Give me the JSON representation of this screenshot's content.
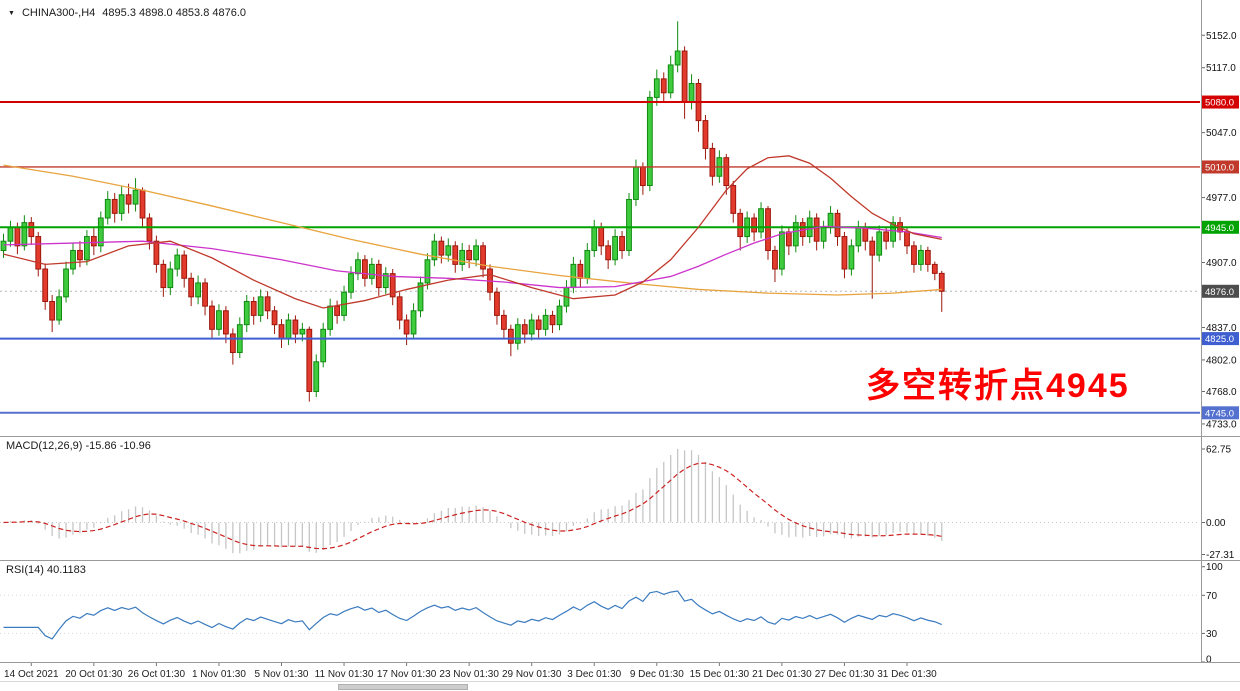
{
  "window": {
    "title": "CHINA300-,H4",
    "ohlc": "4895.3 4898.0 4853.8 4876.0"
  },
  "annotation": {
    "text": "多空转折点4945",
    "color": "#FF0000"
  },
  "chart_data": {
    "type": "candlestick",
    "symbol": "CHINA300-",
    "timeframe": "H4",
    "last_bar": {
      "open": 4895.3,
      "high": 4898.0,
      "low": 4853.8,
      "close": 4876.0
    },
    "price_range": {
      "min": 4720,
      "max": 5190
    },
    "price_axis_labels": [
      5152.0,
      5117.0,
      5047.0,
      4977.0,
      4907.0,
      4837.0,
      4802.0,
      4768.0,
      4733.0
    ],
    "hlines": [
      {
        "price": 5080.0,
        "color": "#d40000",
        "width": 2
      },
      {
        "price": 5010.0,
        "color": "#c0392b",
        "width": 1.4
      },
      {
        "price": 4945.0,
        "color": "#00a300",
        "width": 2
      },
      {
        "price": 4825.0,
        "color": "#3f5fd0",
        "width": 2
      },
      {
        "price": 4745.0,
        "color": "#5571cf",
        "width": 2
      }
    ],
    "current_price": {
      "value": 4876.0,
      "badge_color": "#4d4d4d",
      "line_color": "#b5b5b5"
    },
    "colors": {
      "up_fill": "#3ecb3e",
      "up_stroke": "#118a11",
      "down_fill": "#e23a2c",
      "down_stroke": "#9c170c"
    },
    "candles": [
      [
        4920,
        4938,
        4912,
        4930
      ],
      [
        4930,
        4952,
        4924,
        4945
      ],
      [
        4945,
        4950,
        4916,
        4925
      ],
      [
        4925,
        4958,
        4920,
        4950
      ],
      [
        4950,
        4956,
        4926,
        4935
      ],
      [
        4935,
        4940,
        4892,
        4900
      ],
      [
        4900,
        4906,
        4856,
        4865
      ],
      [
        4865,
        4872,
        4832,
        4845
      ],
      [
        4845,
        4878,
        4840,
        4870
      ],
      [
        4870,
        4908,
        4864,
        4900
      ],
      [
        4900,
        4928,
        4894,
        4920
      ],
      [
        4920,
        4930,
        4902,
        4910
      ],
      [
        4910,
        4942,
        4904,
        4935
      ],
      [
        4935,
        4944,
        4915,
        4925
      ],
      [
        4925,
        4962,
        4918,
        4955
      ],
      [
        4955,
        4984,
        4948,
        4975
      ],
      [
        4975,
        4982,
        4950,
        4960
      ],
      [
        4960,
        4990,
        4952,
        4980
      ],
      [
        4980,
        4992,
        4960,
        4970
      ],
      [
        4970,
        4998,
        4962,
        4985
      ],
      [
        4985,
        4988,
        4946,
        4955
      ],
      [
        4955,
        4960,
        4921,
        4930
      ],
      [
        4930,
        4936,
        4896,
        4905
      ],
      [
        4905,
        4910,
        4870,
        4880
      ],
      [
        4880,
        4908,
        4872,
        4900
      ],
      [
        4900,
        4922,
        4892,
        4915
      ],
      [
        4915,
        4920,
        4880,
        4890
      ],
      [
        4890,
        4896,
        4860,
        4870
      ],
      [
        4870,
        4893,
        4862,
        4885
      ],
      [
        4885,
        4890,
        4850,
        4860
      ],
      [
        4860,
        4866,
        4824,
        4835
      ],
      [
        4835,
        4862,
        4828,
        4855
      ],
      [
        4855,
        4860,
        4820,
        4830
      ],
      [
        4830,
        4836,
        4797,
        4810
      ],
      [
        4810,
        4848,
        4804,
        4840
      ],
      [
        4840,
        4872,
        4832,
        4865
      ],
      [
        4865,
        4870,
        4840,
        4850
      ],
      [
        4850,
        4878,
        4843,
        4870
      ],
      [
        4870,
        4876,
        4846,
        4855
      ],
      [
        4855,
        4860,
        4830,
        4840
      ],
      [
        4840,
        4846,
        4815,
        4825
      ],
      [
        4825,
        4852,
        4818,
        4845
      ],
      [
        4845,
        4850,
        4820,
        4830
      ],
      [
        4830,
        4842,
        4822,
        4835
      ],
      [
        4835,
        4838,
        4757,
        4768
      ],
      [
        4768,
        4808,
        4762,
        4800
      ],
      [
        4800,
        4842,
        4794,
        4835
      ],
      [
        4835,
        4868,
        4828,
        4860
      ],
      [
        4860,
        4866,
        4841,
        4850
      ],
      [
        4850,
        4882,
        4844,
        4875
      ],
      [
        4875,
        4903,
        4868,
        4895
      ],
      [
        4895,
        4918,
        4888,
        4910
      ],
      [
        4910,
        4915,
        4881,
        4890
      ],
      [
        4890,
        4912,
        4883,
        4905
      ],
      [
        4905,
        4910,
        4871,
        4880
      ],
      [
        4880,
        4902,
        4873,
        4895
      ],
      [
        4895,
        4900,
        4861,
        4870
      ],
      [
        4870,
        4875,
        4835,
        4845
      ],
      [
        4845,
        4851,
        4818,
        4830
      ],
      [
        4830,
        4863,
        4824,
        4855
      ],
      [
        4855,
        4892,
        4848,
        4885
      ],
      [
        4885,
        4917,
        4878,
        4910
      ],
      [
        4910,
        4938,
        4903,
        4930
      ],
      [
        4930,
        4935,
        4906,
        4915
      ],
      [
        4915,
        4933,
        4908,
        4925
      ],
      [
        4925,
        4930,
        4896,
        4905
      ],
      [
        4905,
        4928,
        4898,
        4920
      ],
      [
        4920,
        4926,
        4901,
        4910
      ],
      [
        4910,
        4932,
        4903,
        4925
      ],
      [
        4925,
        4929,
        4891,
        4900
      ],
      [
        4900,
        4905,
        4866,
        4875
      ],
      [
        4875,
        4880,
        4840,
        4850
      ],
      [
        4850,
        4856,
        4824,
        4835
      ],
      [
        4835,
        4840,
        4806,
        4820
      ],
      [
        4820,
        4847,
        4813,
        4840
      ],
      [
        4840,
        4846,
        4820,
        4830
      ],
      [
        4830,
        4852,
        4823,
        4845
      ],
      [
        4845,
        4850,
        4826,
        4835
      ],
      [
        4835,
        4857,
        4828,
        4850
      ],
      [
        4850,
        4855,
        4831,
        4840
      ],
      [
        4840,
        4867,
        4834,
        4860
      ],
      [
        4860,
        4888,
        4853,
        4880
      ],
      [
        4880,
        4913,
        4874,
        4905
      ],
      [
        4905,
        4910,
        4880,
        4890
      ],
      [
        4890,
        4928,
        4884,
        4920
      ],
      [
        4920,
        4953,
        4913,
        4945
      ],
      [
        4945,
        4950,
        4915,
        4925
      ],
      [
        4925,
        4931,
        4900,
        4910
      ],
      [
        4910,
        4943,
        4904,
        4935
      ],
      [
        4935,
        4941,
        4911,
        4920
      ],
      [
        4920,
        4982,
        4914,
        4975
      ],
      [
        4975,
        5018,
        4968,
        5010
      ],
      [
        5010,
        5015,
        4980,
        4990
      ],
      [
        4990,
        5092,
        4984,
        5085
      ],
      [
        5085,
        5115,
        5076,
        5105
      ],
      [
        5105,
        5112,
        5080,
        5090
      ],
      [
        5090,
        5130,
        5084,
        5120
      ],
      [
        5120,
        5167,
        5112,
        5135
      ],
      [
        5135,
        5140,
        5062,
        5080
      ],
      [
        5080,
        5110,
        5072,
        5100
      ],
      [
        5100,
        5105,
        5048,
        5060
      ],
      [
        5060,
        5066,
        5018,
        5030
      ],
      [
        5030,
        5036,
        4990,
        5000
      ],
      [
        5000,
        5028,
        4993,
        5020
      ],
      [
        5020,
        5024,
        4980,
        4990
      ],
      [
        4990,
        4995,
        4950,
        4960
      ],
      [
        4960,
        4965,
        4920,
        4935
      ],
      [
        4935,
        4962,
        4928,
        4955
      ],
      [
        4955,
        4960,
        4930,
        4940
      ],
      [
        4940,
        4972,
        4933,
        4965
      ],
      [
        4965,
        4968,
        4910,
        4920
      ],
      [
        4920,
        4925,
        4886,
        4900
      ],
      [
        4900,
        4947,
        4893,
        4940
      ],
      [
        4940,
        4945,
        4915,
        4925
      ],
      [
        4925,
        4958,
        4918,
        4950
      ],
      [
        4950,
        4955,
        4925,
        4935
      ],
      [
        4935,
        4963,
        4928,
        4955
      ],
      [
        4955,
        4960,
        4920,
        4930
      ],
      [
        4930,
        4952,
        4922,
        4945
      ],
      [
        4945,
        4968,
        4938,
        4960
      ],
      [
        4960,
        4964,
        4925,
        4935
      ],
      [
        4935,
        4940,
        4890,
        4900
      ],
      [
        4900,
        4932,
        4893,
        4925
      ],
      [
        4925,
        4952,
        4918,
        4945
      ],
      [
        4945,
        4950,
        4920,
        4930
      ],
      [
        4930,
        4935,
        4868,
        4915
      ],
      [
        4915,
        4947,
        4908,
        4940
      ],
      [
        4940,
        4946,
        4921,
        4930
      ],
      [
        4930,
        4957,
        4923,
        4950
      ],
      [
        4950,
        4956,
        4931,
        4940
      ],
      [
        4940,
        4945,
        4916,
        4925
      ],
      [
        4925,
        4930,
        4896,
        4905
      ],
      [
        4905,
        4926,
        4898,
        4920
      ],
      [
        4920,
        4924,
        4897,
        4905
      ],
      [
        4905,
        4908,
        4888,
        4895.3
      ],
      [
        4895.3,
        4898,
        4853.8,
        4876
      ]
    ],
    "ma_lines": [
      {
        "name": "ma-slow-orange",
        "color": "#e8a33d",
        "points": [
          [
            0,
            5012
          ],
          [
            10,
            5000
          ],
          [
            20,
            4985
          ],
          [
            30,
            4968
          ],
          [
            40,
            4950
          ],
          [
            50,
            4932
          ],
          [
            60,
            4916
          ],
          [
            70,
            4903
          ],
          [
            80,
            4893
          ],
          [
            90,
            4885
          ],
          [
            100,
            4878
          ],
          [
            110,
            4874
          ],
          [
            120,
            4872
          ],
          [
            128,
            4874
          ],
          [
            135,
            4878
          ]
        ]
      },
      {
        "name": "ma-mid-magenta",
        "color": "#cc33cc",
        "points": [
          [
            0,
            4926
          ],
          [
            10,
            4928
          ],
          [
            20,
            4930
          ],
          [
            30,
            4922
          ],
          [
            40,
            4910
          ],
          [
            48,
            4898
          ],
          [
            56,
            4892
          ],
          [
            64,
            4890
          ],
          [
            72,
            4886
          ],
          [
            80,
            4880
          ],
          [
            88,
            4881
          ],
          [
            96,
            4892
          ],
          [
            100,
            4903
          ],
          [
            104,
            4916
          ],
          [
            108,
            4928
          ],
          [
            112,
            4938
          ],
          [
            118,
            4946
          ],
          [
            124,
            4944
          ],
          [
            130,
            4940
          ],
          [
            135,
            4934
          ]
        ]
      },
      {
        "name": "ma-fast-red",
        "color": "#c0392b",
        "points": [
          [
            0,
            4916
          ],
          [
            6,
            4905
          ],
          [
            12,
            4908
          ],
          [
            18,
            4925
          ],
          [
            24,
            4930
          ],
          [
            30,
            4912
          ],
          [
            36,
            4888
          ],
          [
            42,
            4868
          ],
          [
            46,
            4858
          ],
          [
            52,
            4866
          ],
          [
            58,
            4878
          ],
          [
            64,
            4888
          ],
          [
            70,
            4894
          ],
          [
            76,
            4880
          ],
          [
            82,
            4868
          ],
          [
            88,
            4872
          ],
          [
            92,
            4886
          ],
          [
            96,
            4910
          ],
          [
            100,
            4945
          ],
          [
            104,
            4985
          ],
          [
            107,
            5008
          ],
          [
            110,
            5020
          ],
          [
            113,
            5022
          ],
          [
            116,
            5014
          ],
          [
            119,
            4998
          ],
          [
            122,
            4978
          ],
          [
            125,
            4960
          ],
          [
            128,
            4948
          ],
          [
            131,
            4938
          ],
          [
            135,
            4932
          ]
        ]
      }
    ],
    "time_labels": [
      {
        "i": 4,
        "t": "14 Oct 2021"
      },
      {
        "i": 13,
        "t": "20 Oct 01:30"
      },
      {
        "i": 22,
        "t": "26 Oct 01:30"
      },
      {
        "i": 31,
        "t": "1 Nov 01:30"
      },
      {
        "i": 40,
        "t": "5 Nov 01:30"
      },
      {
        "i": 49,
        "t": "11 Nov 01:30"
      },
      {
        "i": 58,
        "t": "17 Nov 01:30"
      },
      {
        "i": 67,
        "t": "23 Nov 01:30"
      },
      {
        "i": 76,
        "t": "29 Nov 01:30"
      },
      {
        "i": 85,
        "t": "3 Dec 01:30"
      },
      {
        "i": 94,
        "t": "9 Dec 01:30"
      },
      {
        "i": 103,
        "t": "15 Dec 01:30"
      },
      {
        "i": 112,
        "t": "21 Dec 01:30"
      },
      {
        "i": 121,
        "t": "27 Dec 01:30"
      },
      {
        "i": 130,
        "t": "31 Dec 01:30"
      }
    ],
    "macd": {
      "label": "MACD(12,26,9) -15.86 -10.96",
      "params": [
        12,
        26,
        9
      ],
      "values": [
        -15.86,
        -10.96
      ],
      "axis": [
        62.75,
        0,
        -27.31
      ],
      "range": {
        "min": -32,
        "max": 73
      },
      "peak": 62.75,
      "histogram_color": "#c6c6c6",
      "signal_color": "#cc2222",
      "zero_line_color": "#c9c9c9"
    },
    "rsi": {
      "label": "RSI(14) 40.1183",
      "period": 14,
      "value": 40.1183,
      "axis": [
        100,
        70,
        30,
        0
      ],
      "levels": [
        70,
        30
      ],
      "line_color": "#3b7bbf",
      "level_color": "#d6d6d6"
    }
  }
}
